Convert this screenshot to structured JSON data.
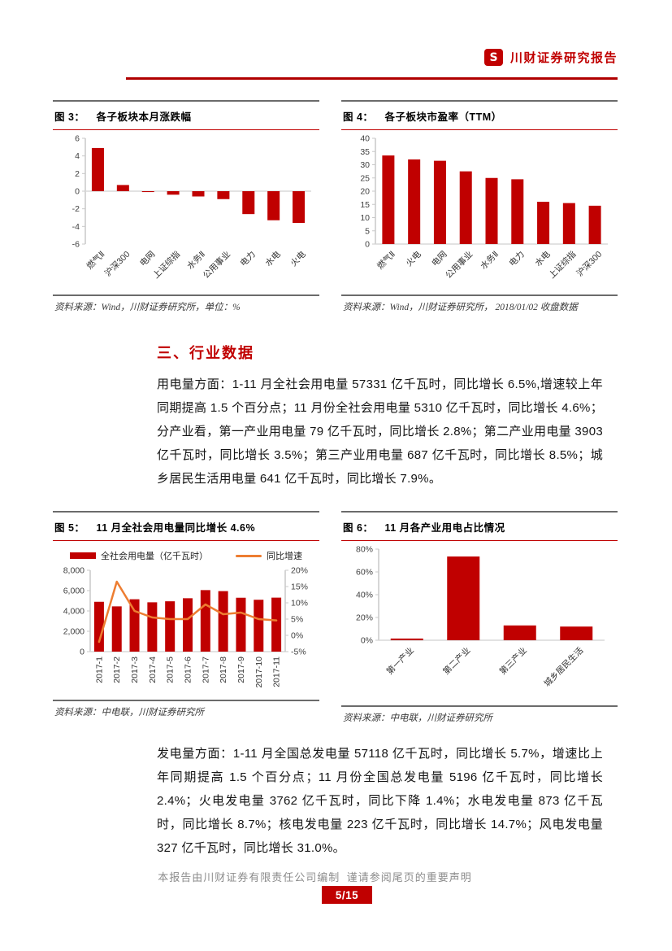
{
  "header": {
    "brand": "川财证券研究报告",
    "logo_glyph": "S"
  },
  "section": {
    "heading": "三、行业数据"
  },
  "paragraphs": {
    "electricity_usage": "用电量方面：1-11 月全社会用电量 57331 亿千瓦时，同比增长 6.5%,增速较上年同期提高 1.5 个百分点；11 月份全社会用电量 5310 亿千瓦时，同比增长 4.6%；分产业看，第一产业用电量 79 亿千瓦时，同比增长 2.8%；第二产业用电量 3903 亿千瓦时，同比增长 3.5%；第三产业用电量 687 亿千瓦时，同比增长 8.5%；城乡居民生活用电量 641 亿千瓦时，同比增长 7.9%。",
    "power_generation": "发电量方面：1-11 月全国总发电量 57118 亿千瓦时，同比增长 5.7%，增速比上年同期提高 1.5 个百分点；11 月份全国总发电量 5196 亿千瓦时，同比增长 2.4%；火电发电量 3762 亿千瓦时，同比下降 1.4%；水电发电量 873 亿千瓦时，同比增长 8.7%；核电发电量 223 亿千瓦时，同比增长 14.7%；风电发电量 327 亿千瓦时，同比增长 31.0%。"
  },
  "footer": {
    "disclaimer": "本报告由川财证券有限责任公司编制  谨请参阅尾页的重要声明",
    "page_number": "5/15"
  },
  "colors": {
    "accent_red": "#C00000",
    "bar_red": "#C00000",
    "line_orange": "#ED7D31",
    "axis_line": "#C9C9C9",
    "baseline": "#D9D9D9",
    "tick_text": "#404040"
  },
  "chart_data": [
    {
      "type": "bar",
      "fig_label": "图 3：",
      "title": "各子板块本月涨跌幅",
      "source": "资料来源：Wind，川财证券研究所，单位：%",
      "categories": [
        "燃气Ⅱ",
        "沪深300",
        "电网",
        "上证综指",
        "水务Ⅱ",
        "公用事业",
        "电力",
        "水电",
        "火电"
      ],
      "values": [
        4.9,
        0.7,
        -0.1,
        -0.4,
        -0.6,
        -0.9,
        -2.6,
        -3.3,
        -3.6
      ],
      "ylabel": "",
      "xlabel": "",
      "ylim": [
        -6,
        6
      ],
      "ystep": 2,
      "yfmt": "plain",
      "grid": false,
      "layout": {
        "l": 40,
        "r": 10,
        "t": 10,
        "ph": 130,
        "bw": 15,
        "rot": -45
      }
    },
    {
      "type": "bar",
      "fig_label": "图 4：",
      "title": "各子板块市盈率（TTM）",
      "source": "资料来源：Wind，川财证券研究所， 2018/01/02 收盘数据",
      "categories": [
        "燃气Ⅱ",
        "火电",
        "电网",
        "公用事业",
        "水务Ⅱ",
        "电力",
        "水电",
        "上证综指",
        "沪深300"
      ],
      "values": [
        33.5,
        32.0,
        31.5,
        27.5,
        25.0,
        24.5,
        16.0,
        15.5,
        14.5
      ],
      "ylabel": "",
      "xlabel": "",
      "ylim": [
        0,
        40
      ],
      "ystep": 5,
      "yfmt": "plain",
      "grid": false,
      "layout": {
        "l": 42,
        "r": 12,
        "t": 10,
        "ph": 130,
        "bw": 15,
        "rot": -45
      }
    },
    {
      "type": "bar+line",
      "fig_label": "图 5：",
      "title": "11 月全社会用电量同比增长 4.6%",
      "source": "资料来源：中电联，川财证券研究所",
      "legend": [
        {
          "swatch": "bar",
          "label": "全社会用电量（亿千瓦时）"
        },
        {
          "swatch": "line",
          "label": "同比增速"
        }
      ],
      "categories": [
        "2017-1",
        "2017-2",
        "2017-3",
        "2017-4",
        "2017-5",
        "2017-6",
        "2017-7",
        "2017-8",
        "2017-9",
        "2017-10",
        "2017-11"
      ],
      "values": [
        4900,
        4450,
        5150,
        4850,
        4950,
        5250,
        6050,
        5950,
        5300,
        5100,
        5310
      ],
      "line": [
        -2.0,
        16.5,
        7.5,
        5.5,
        5.0,
        5.0,
        9.5,
        6.5,
        7.0,
        5.0,
        4.6
      ],
      "ylabel": "",
      "xlabel": "",
      "ylim": [
        0,
        8000
      ],
      "ystep": 2000,
      "yfmt": "thousands",
      "y2lim": [
        -5,
        20
      ],
      "y2step": 5,
      "y2fmt": "percent",
      "grid": false,
      "legend_position": "top",
      "layout": {
        "l": 46,
        "r": 42,
        "t": 8,
        "ph": 100,
        "bw": 12,
        "rot": -90
      }
    },
    {
      "type": "bar",
      "fig_label": "图 6：",
      "title": "11 月各产业用电占比情况",
      "source": "资料来源：中电联，川财证券研究所",
      "categories": [
        "第一产业",
        "第二产业",
        "第三产业",
        "城乡居民生活"
      ],
      "values": [
        1.5,
        73.5,
        13.0,
        12.0
      ],
      "ylabel": "",
      "xlabel": "",
      "ylim": [
        0,
        80
      ],
      "ystep": 20,
      "yfmt": "percent",
      "grid": false,
      "layout": {
        "l": 46,
        "r": 16,
        "t": 10,
        "ph": 112,
        "bw": 40,
        "rot": -45
      }
    }
  ]
}
